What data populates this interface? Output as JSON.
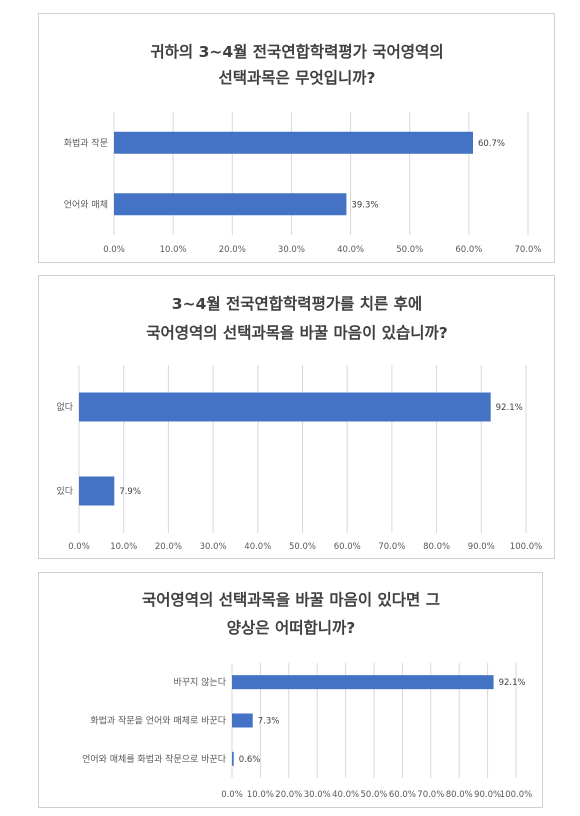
{
  "chart_data": [
    {
      "type": "bar",
      "orientation": "horizontal",
      "title_lines": [
        "귀하의 3~4월 전국연합학력평가 국어영역의",
        "선택과목은 무엇입니까?"
      ],
      "categories": [
        "화법과 작문",
        "언어와 매체"
      ],
      "values": [
        60.7,
        39.3
      ],
      "value_labels": [
        "60.7%",
        "39.3%"
      ],
      "xlim": [
        0,
        70
      ],
      "ticks": [
        "0.0%",
        "10.0%",
        "20.0%",
        "30.0%",
        "40.0%",
        "50.0%",
        "60.0%",
        "70.0%"
      ],
      "tick_values": [
        0,
        10,
        20,
        30,
        40,
        50,
        60,
        70
      ],
      "bar_color": "#4472c4",
      "grid": true
    },
    {
      "type": "bar",
      "orientation": "horizontal",
      "title_lines": [
        "3~4월 전국연합학력평가를 치른 후에",
        "국어영역의 선택과목을 바꿀 마음이 있습니까?"
      ],
      "categories": [
        "없다",
        "있다"
      ],
      "values": [
        92.1,
        7.9
      ],
      "value_labels": [
        "92.1%",
        "7.9%"
      ],
      "xlim": [
        0,
        100
      ],
      "ticks": [
        "0.0%",
        "10.0%",
        "20.0%",
        "30.0%",
        "40.0%",
        "50.0%",
        "60.0%",
        "70.0%",
        "80.0%",
        "90.0%",
        "100.0%"
      ],
      "tick_values": [
        0,
        10,
        20,
        30,
        40,
        50,
        60,
        70,
        80,
        90,
        100
      ],
      "bar_color": "#4472c4",
      "grid": true
    },
    {
      "type": "bar",
      "orientation": "horizontal",
      "title_lines": [
        "국어영역의 선택과목을 바꿀 마음이 있다면 그",
        "양상은 어떠합니까?"
      ],
      "categories": [
        "바꾸지 않는다",
        "화법과 작문을 언어와 매체로 바꾼다",
        "언어와 매체를 화법과 작문으로 바꾼다"
      ],
      "values": [
        92.1,
        7.3,
        0.6
      ],
      "value_labels": [
        "92.1%",
        "7.3%",
        "0.6%"
      ],
      "xlim": [
        0,
        100
      ],
      "ticks": [
        "0.0%",
        "10.0%",
        "20.0%",
        "30.0%",
        "40.0%",
        "50.0%",
        "60.0%",
        "70.0%",
        "80.0%",
        "90.0%",
        "100.0%"
      ],
      "tick_values": [
        0,
        10,
        20,
        30,
        40,
        50,
        60,
        70,
        80,
        90,
        100
      ],
      "bar_color": "#4472c4",
      "grid": true
    }
  ]
}
